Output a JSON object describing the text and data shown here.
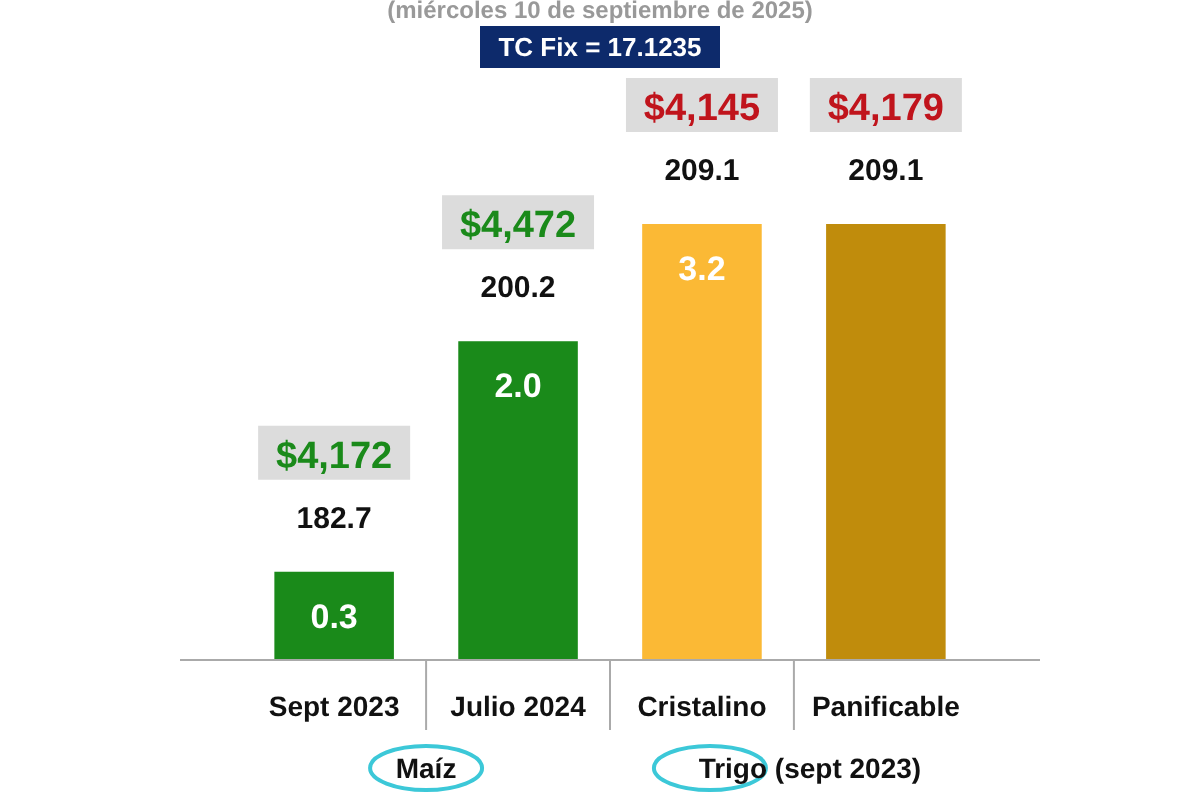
{
  "chart_data": {
    "type": "bar",
    "subtitle": "(miércoles 10 de septiembre de 2025)",
    "categories": [
      "Sept 2023",
      "Julio 2024",
      "Cristalino",
      "Panificable"
    ],
    "values": [
      182.7,
      200.2,
      209.1,
      209.1
    ],
    "colors": [
      "#1a8a1a",
      "#1a8a1a",
      "#fbb935",
      "#c08c0c"
    ],
    "ylim": [
      176,
      209.1
    ],
    "data_labels": true,
    "annotations": [
      "TC Fix = 17.1235",
      "Maíz",
      "Trigo (sept 2023)",
      "$4,172",
      "$4,472",
      "$4,145",
      "$4,179",
      "0.3",
      "2.0",
      "3.2"
    ]
  }
}
